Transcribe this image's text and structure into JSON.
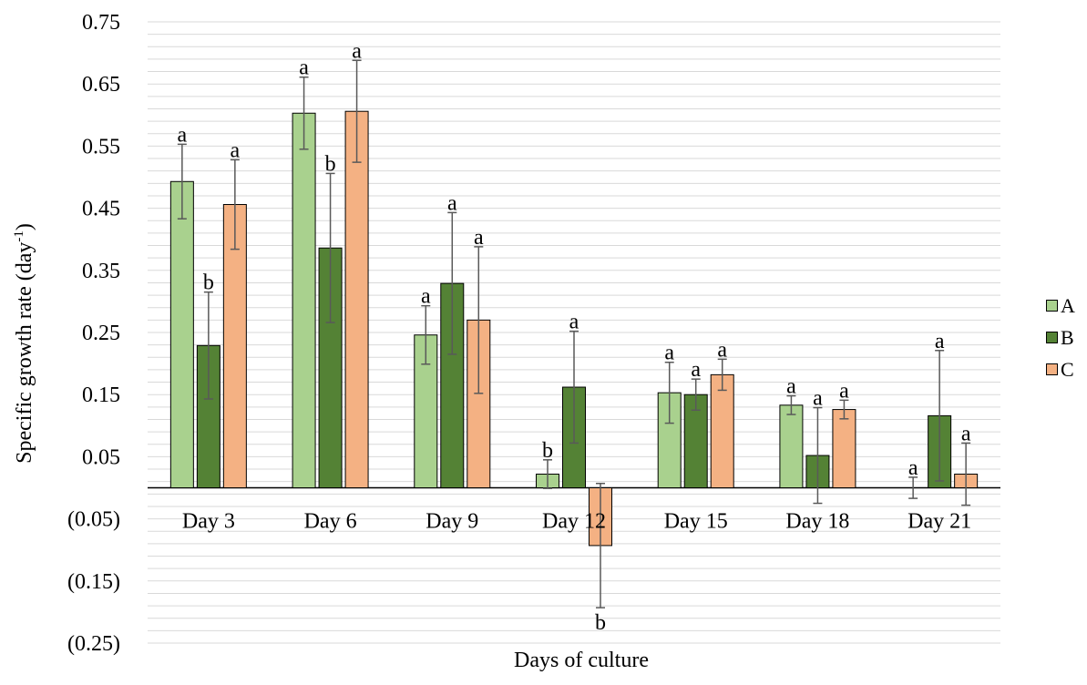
{
  "chart_data": {
    "type": "bar",
    "title": "",
    "xlabel": "Days of culture",
    "ylabel_prefix": "Specific growth rate (day",
    "ylabel_superscript": "-1",
    "ylabel_suffix": ")",
    "ylim": [
      -0.25,
      0.75
    ],
    "yticks": [
      0.75,
      0.65,
      0.55,
      0.45,
      0.35,
      0.25,
      0.15,
      0.05,
      -0.05,
      -0.15,
      -0.25
    ],
    "ytick_labels": [
      "0.75",
      "0.65",
      "0.55",
      "0.45",
      "0.35",
      "0.25",
      "0.15",
      "0.05",
      "(0.05)",
      "(0.15)",
      "(0.25)"
    ],
    "minor_grid_step": 0.02,
    "grid": true,
    "legend_position": "right",
    "categories": [
      "Day 3",
      "Day 6",
      "Day 9",
      "Day 12",
      "Day 15",
      "Day 18",
      "Day 21"
    ],
    "series": [
      {
        "name": "A",
        "color": "#a9d18e",
        "values": [
          0.493,
          0.603,
          0.246,
          0.022,
          0.153,
          0.133,
          0.0
        ],
        "errors": [
          0.06,
          0.058,
          0.047,
          0.023,
          0.049,
          0.015,
          0.017
        ],
        "labels": [
          "a",
          "a",
          "a",
          "b",
          "a",
          "a",
          "a"
        ]
      },
      {
        "name": "B",
        "color": "#548235",
        "values": [
          0.229,
          0.386,
          0.329,
          0.162,
          0.15,
          0.052,
          0.116
        ],
        "errors": [
          0.086,
          0.12,
          0.114,
          0.09,
          0.025,
          0.077,
          0.105
        ],
        "labels": [
          "b",
          "b",
          "a",
          "a",
          "a",
          "a",
          "a"
        ]
      },
      {
        "name": "C",
        "color": "#f4b183",
        "values": [
          0.456,
          0.606,
          0.27,
          -0.093,
          0.182,
          0.126,
          0.022
        ],
        "errors": [
          0.072,
          0.082,
          0.118,
          0.1,
          0.025,
          0.015,
          0.05
        ],
        "labels": [
          "a",
          "a",
          "a",
          "b",
          "a",
          "a",
          "a"
        ]
      }
    ]
  }
}
